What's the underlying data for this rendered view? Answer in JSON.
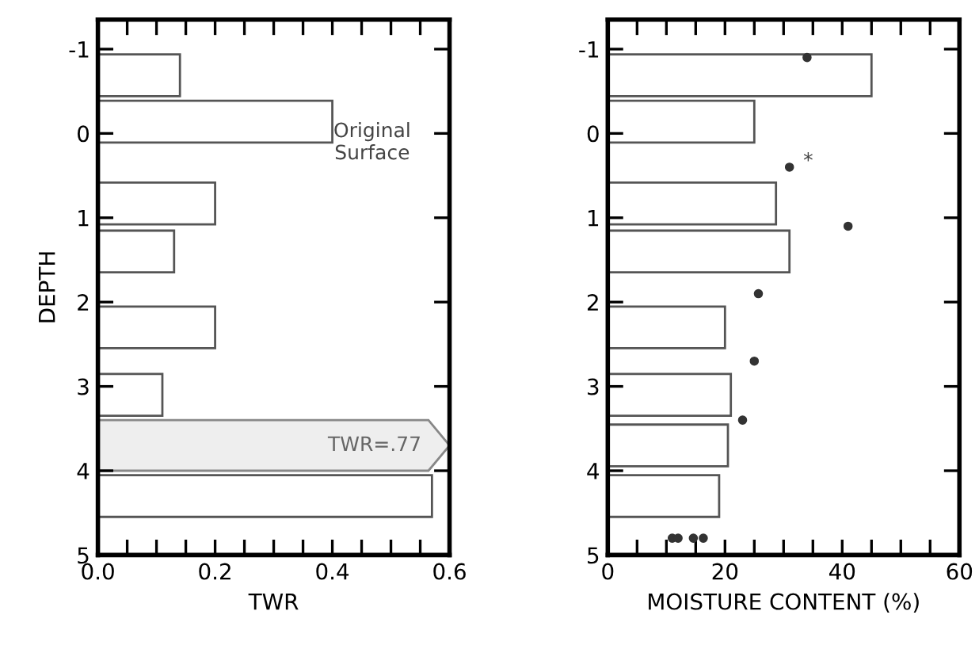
{
  "chart_data": [
    {
      "type": "bar",
      "orientation": "horizontal",
      "ylabel": "DEPTH",
      "xlabel": "TWR",
      "x": [
        -0.69,
        -0.14,
        0.83,
        1.4,
        2.3,
        3.1,
        4.3
      ],
      "values": [
        0.14,
        0.4,
        0.2,
        0.13,
        0.2,
        0.11,
        0.57
      ],
      "color": "#555555",
      "bands": [
        {
          "axis": "y",
          "from": 3.4,
          "to": 4.0,
          "label": "TWR=.77",
          "color": "#eeeeee"
        }
      ],
      "xlim": [
        0,
        0.6
      ],
      "xticks": [
        {
          "value": 0,
          "label": "0.0"
        },
        {
          "value": 0.05,
          "label": null
        },
        {
          "value": 0.1,
          "label": null
        },
        {
          "value": 0.15,
          "label": null
        },
        {
          "value": 0.2,
          "label": "0.2"
        },
        {
          "value": 0.25,
          "label": null
        },
        {
          "value": 0.3,
          "label": null
        },
        {
          "value": 0.35,
          "label": null
        },
        {
          "value": 0.4,
          "label": "0.4"
        },
        {
          "value": 0.45,
          "label": null
        },
        {
          "value": 0.5,
          "label": null
        },
        {
          "value": 0.55,
          "label": null
        },
        {
          "value": 0.6,
          "label": "0.6"
        }
      ],
      "ylim": [
        5,
        -1.35
      ],
      "yticks": [
        -1,
        0,
        1,
        2,
        3,
        4,
        5
      ],
      "annotations": [
        "Original\nSurface"
      ]
    },
    {
      "type": "bar",
      "orientation": "horizontal",
      "xlabel": "MOISTURE CONTENT (%)",
      "x": [
        -0.69,
        -0.14,
        0.83,
        1.4,
        2.3,
        3.1,
        3.7,
        4.3
      ],
      "values": [
        45,
        25,
        28.7,
        31,
        20,
        21,
        20.5,
        19
      ],
      "color": "#555555",
      "series": [
        {
          "type": "scatter",
          "marker": "circle",
          "color": "#333333",
          "x": [
            -0.9,
            0.4,
            1.1,
            1.9,
            2.7,
            3.4,
            4.8,
            4.8,
            4.8,
            4.8
          ],
          "values": [
            34,
            31,
            41,
            25.7,
            25,
            23,
            11,
            12,
            14.6,
            16.3
          ]
        }
      ],
      "xlim": [
        0,
        60
      ],
      "xticks": [
        0,
        {
          "value": 5,
          "label": null
        },
        {
          "value": 10,
          "label": null
        },
        {
          "value": 15,
          "label": null
        },
        20,
        {
          "value": 25,
          "label": null
        },
        {
          "value": 30,
          "label": null
        },
        {
          "value": 35,
          "label": null
        },
        40,
        {
          "value": 45,
          "label": null
        },
        {
          "value": 50,
          "label": null
        },
        {
          "value": 55,
          "label": null
        },
        60
      ],
      "ylim": [
        5,
        -1.35
      ],
      "yticks": [
        -1,
        0,
        1,
        2,
        3,
        4,
        5
      ],
      "annotations": [
        "*"
      ]
    }
  ]
}
